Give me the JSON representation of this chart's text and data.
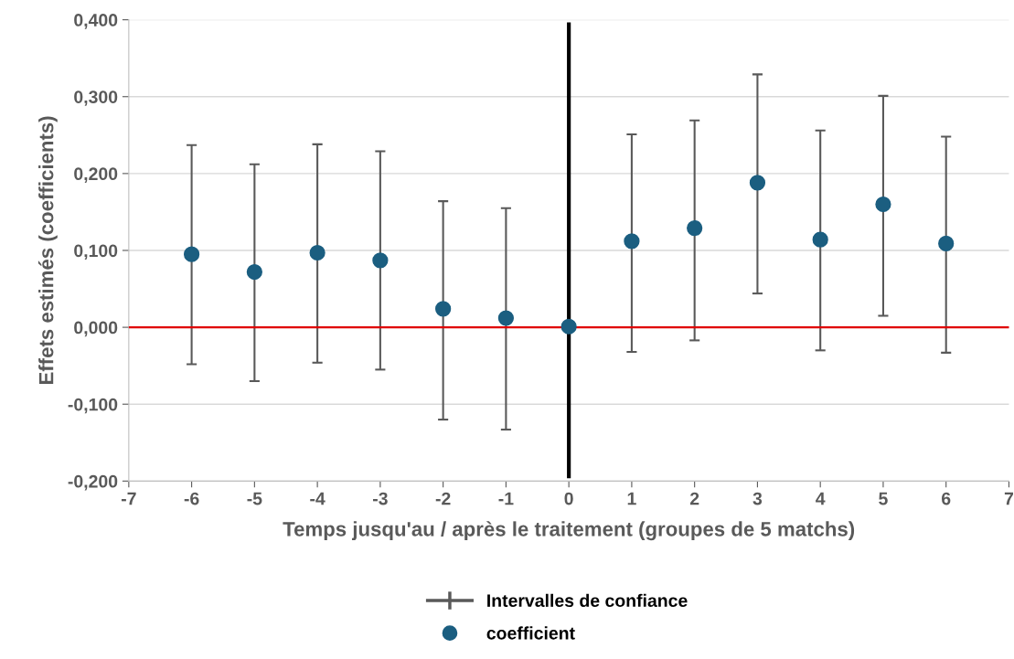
{
  "chart_data": {
    "type": "scatter",
    "xlabel": "Temps jusqu'au / après le traitement (groupes de 5 matchs)",
    "ylabel": "Effets estimés (coefficients)",
    "x": [
      -6,
      -5,
      -4,
      -3,
      -2,
      -1,
      0,
      1,
      2,
      3,
      4,
      5,
      6
    ],
    "series": [
      {
        "name": "coefficient",
        "color": "#1b5e80",
        "values": [
          0.095,
          0.072,
          0.097,
          0.087,
          0.024,
          0.012,
          0.001,
          0.112,
          0.129,
          0.188,
          0.114,
          0.16,
          0.109
        ],
        "errors": [
          [
            -0.048,
            0.237
          ],
          [
            -0.07,
            0.212
          ],
          [
            -0.046,
            0.238
          ],
          [
            -0.055,
            0.229
          ],
          [
            -0.12,
            0.164
          ],
          [
            -0.133,
            0.155
          ],
          null,
          [
            -0.032,
            0.251
          ],
          [
            -0.017,
            0.269
          ],
          [
            0.044,
            0.329
          ],
          [
            -0.03,
            0.256
          ],
          [
            0.015,
            0.301
          ],
          [
            -0.033,
            0.248
          ]
        ]
      }
    ],
    "annotations": [
      "Intervalles de confiance"
    ],
    "marker": "circle",
    "xlim": [
      -7,
      7
    ],
    "xticks": [
      -7,
      -6,
      -5,
      -4,
      -3,
      -2,
      -1,
      0,
      1,
      2,
      3,
      4,
      5,
      6,
      7
    ],
    "ylim": [
      -0.2,
      0.4
    ],
    "yticks": [
      {
        "value": -0.2,
        "label": "-0,200"
      },
      {
        "value": -0.1,
        "label": "-0,100"
      },
      {
        "value": 0,
        "label": "0,000"
      },
      {
        "value": 0.1,
        "label": "0,100"
      },
      {
        "value": 0.2,
        "label": "0,200"
      },
      {
        "value": 0.3,
        "label": "0,300"
      },
      {
        "value": 0.4,
        "label": "0,400"
      }
    ],
    "grid": "y",
    "legend": "bottom",
    "ref_lines": [
      {
        "axis": "y",
        "value": 0,
        "color": "#e00000"
      },
      {
        "axis": "x",
        "value": 0,
        "color": "#000000"
      }
    ]
  }
}
